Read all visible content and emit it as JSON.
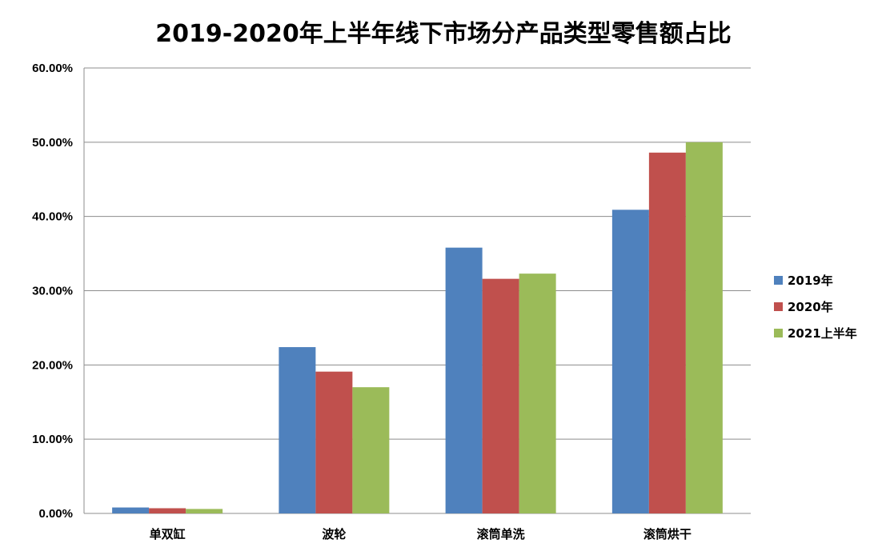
{
  "chart_data": {
    "type": "bar",
    "title": "2019-2020年上半年线下市场分产品类型零售额占比",
    "categories": [
      "单双缸",
      "波轮",
      "滚筒单洗",
      "滚筒烘干"
    ],
    "series": [
      {
        "name": "2019年",
        "values": [
          0.8,
          22.4,
          35.8,
          40.9
        ],
        "color": "#4f81bd"
      },
      {
        "name": "2020年",
        "values": [
          0.7,
          19.1,
          31.6,
          48.6
        ],
        "color": "#c0504d"
      },
      {
        "name": "2021上半年",
        "values": [
          0.6,
          17.0,
          32.3,
          50.0
        ],
        "color": "#9bbb59"
      }
    ],
    "ylim": [
      0,
      60
    ],
    "yticks": [
      "0.00%",
      "10.00%",
      "20.00%",
      "30.00%",
      "40.00%",
      "50.00%",
      "60.00%"
    ],
    "xlabel": "",
    "ylabel": "",
    "grid": true,
    "legend": "right"
  }
}
